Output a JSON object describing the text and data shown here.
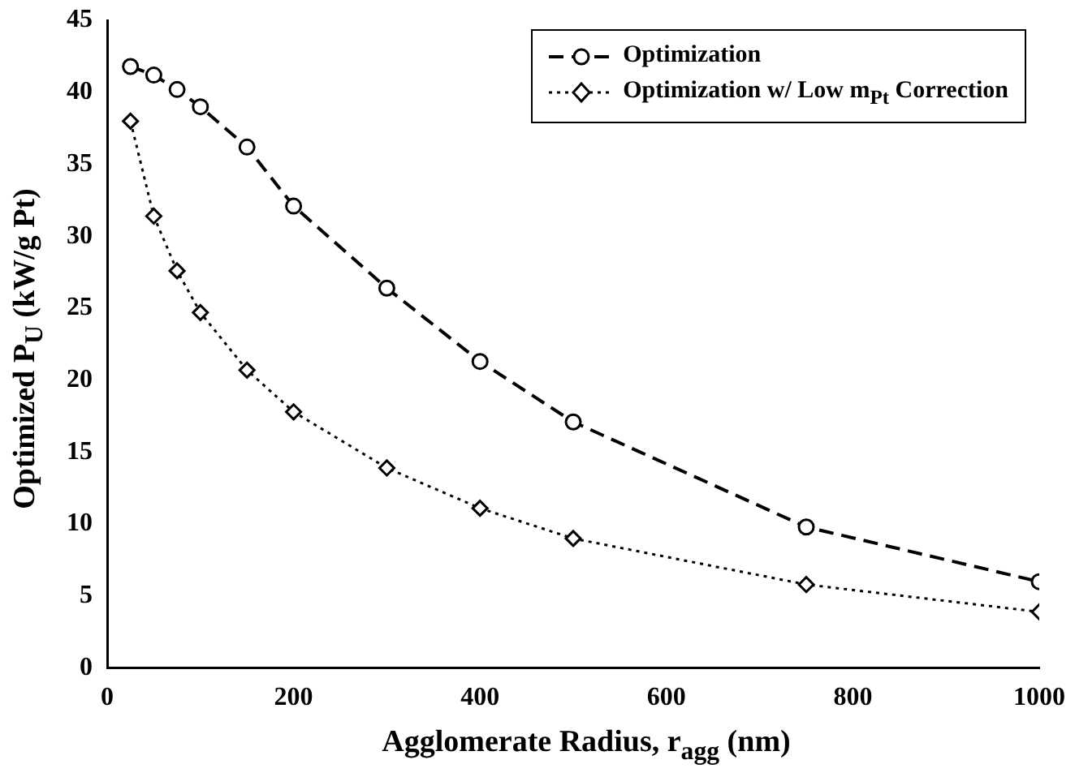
{
  "chart_data": {
    "type": "line",
    "xlabel": "Agglomerate Radius, r$_{agg}$ (nm)",
    "ylabel": "Optimized P$_{U}$ (kW/g Pt)",
    "x": [
      25,
      50,
      75,
      100,
      150,
      200,
      300,
      400,
      500,
      750,
      1000
    ],
    "series": [
      {
        "name": "Optimization",
        "color": "#000000",
        "marker": "circle",
        "line_style": "dashed",
        "values": [
          41.8,
          41.2,
          40.2,
          39.0,
          36.2,
          32.1,
          26.4,
          21.3,
          17.1,
          9.8,
          6.0
        ]
      },
      {
        "name": "Optimization w/ Low m$_{Pt}$ Correction",
        "color": "#000000",
        "marker": "diamond",
        "line_style": "dotted",
        "values": [
          38.0,
          31.4,
          27.6,
          24.7,
          20.7,
          17.8,
          13.9,
          11.1,
          9.0,
          5.8,
          3.9
        ]
      }
    ],
    "xlim": [
      0,
      1000
    ],
    "xticks": [
      0,
      200,
      400,
      600,
      800,
      1000
    ],
    "ylim": [
      0,
      45
    ],
    "yticks": [
      0,
      5,
      10,
      15,
      20,
      25,
      30,
      35,
      40,
      45
    ],
    "grid": false,
    "legend": "top right"
  }
}
